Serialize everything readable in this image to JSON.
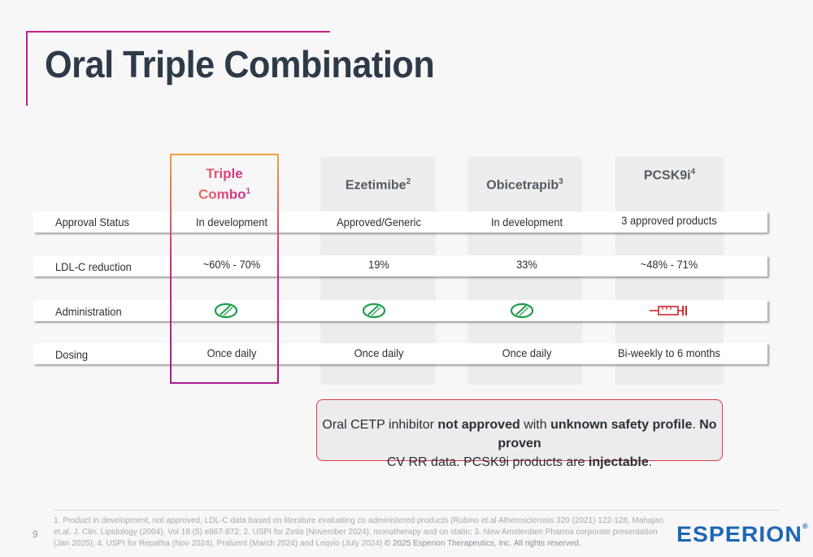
{
  "slide": {
    "title": "Oral Triple Combination",
    "page_number": "9"
  },
  "columns": [
    {
      "name": "Triple",
      "name2": "Combo",
      "sup": "1"
    },
    {
      "name": "Ezetimibe",
      "sup": "2"
    },
    {
      "name": "Obicetrapib",
      "sup": "3"
    },
    {
      "name": "PCSK9i",
      "sup": "4"
    }
  ],
  "rows": [
    {
      "label": "Approval Status",
      "values": [
        "In development",
        "Approved/Generic",
        "In development",
        "3 approved products"
      ]
    },
    {
      "label": "LDL-C reduction",
      "values": [
        "~60% - 70%",
        "19%",
        "33%",
        "~48% - 71%"
      ]
    },
    {
      "label": "Administration",
      "icons": [
        "pill-icon",
        "pill-icon",
        "pill-icon",
        "syringe-icon"
      ]
    },
    {
      "label": "Dosing",
      "values": [
        "Once daily",
        "Once daily",
        "Once daily",
        "Bi-weekly to 6 months"
      ]
    }
  ],
  "callout": {
    "p1": "Oral CETP inhibitor ",
    "b1": "not approved",
    "p2": " with ",
    "b2": "unknown safety profile",
    "p3": ". ",
    "b3": "No proven",
    "p4": "CV RR data. PCSK9i products are ",
    "b4": "injectable",
    "p5": "."
  },
  "footer": {
    "footnote": "1. Product in development, not approved, LDL-C data based on literature evaluating co administered products (Rubino et.al Atherosclerosis 320 (2021) 122-128, Mahajan et.al. J. Clin. Lipidology (2004), Vol 18 (5) e867-872; 2. USPI for Zetia (November 2024), monotherapy and on statin; 3. New Amsterdam Pharma corporate presentation (Jan 2025); 4. USPI for Repatha (Nov 2024), Praluent (March 2024) and Leqvio (July 2024)",
    "copyright": "© 2025 Esperion Therapeutics, Inc. All rights reserved.",
    "logo": "ESPERION",
    "logo_mark": "®"
  },
  "colors": {
    "accent": "#c81e8c",
    "gradient_start": "#f29a3a",
    "gradient_end": "#a61d8b",
    "pill": "#1d9d4a",
    "syringe": "#d3242c",
    "callout_border": "#e23b4a",
    "logo": "#1c67b4"
  }
}
